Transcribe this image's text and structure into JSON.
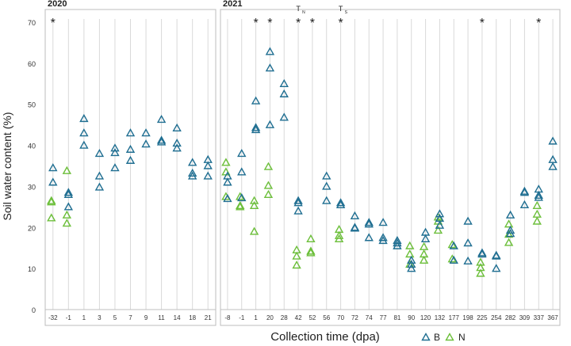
{
  "chart_data": {
    "type": "scatter",
    "ylabel": "Soil water content (%)",
    "xlabel": "Collection time (dpa)",
    "ylim": [
      0,
      70
    ],
    "yticks": [
      0,
      10,
      20,
      30,
      40,
      50,
      60,
      70
    ],
    "marker": "open-triangle",
    "legend_position": "bottom-right",
    "series": [
      {
        "name": "B",
        "color": "#1f6e91"
      },
      {
        "name": "N",
        "color": "#6cbf3a"
      }
    ],
    "panels": [
      {
        "year": "2020",
        "categories": [
          "-32",
          "-1",
          "1",
          "3",
          "5",
          "7",
          "9",
          "11",
          "14",
          "18",
          "21"
        ],
        "stars": [
          "-32"
        ],
        "points": [
          {
            "x": "-32",
            "B": [
              34.5,
              31
            ],
            "N": [
              26.5,
              26.2,
              22.3
            ]
          },
          {
            "x": "-1",
            "B": [
              28.5,
              28,
              25
            ],
            "N": [
              33.8,
              23,
              21
            ]
          },
          {
            "x": "1",
            "B": [
              46.5,
              43,
              40
            ]
          },
          {
            "x": "3",
            "B": [
              38,
              32.5,
              29.8
            ]
          },
          {
            "x": "5",
            "B": [
              39.3,
              38.2,
              34.5
            ]
          },
          {
            "x": "7",
            "B": [
              43,
              39,
              36.3
            ]
          },
          {
            "x": "9",
            "B": [
              43,
              40.3
            ]
          },
          {
            "x": "11",
            "B": [
              46.3,
              41.2,
              40.8
            ]
          },
          {
            "x": "14",
            "B": [
              44.2,
              40.5,
              39.3
            ]
          },
          {
            "x": "18",
            "B": [
              35.8,
              33.2,
              32.5
            ]
          },
          {
            "x": "21",
            "B": [
              36.5,
              35,
              32.5
            ]
          }
        ]
      },
      {
        "year": "2021",
        "categories": [
          "-8",
          "-1",
          "1",
          "20",
          "28",
          "42",
          "52",
          "56",
          "70",
          "72",
          "74",
          "77",
          "81",
          "90",
          "120",
          "132",
          "177",
          "198",
          "225",
          "254",
          "282",
          "309",
          "337",
          "367"
        ],
        "stars": [
          "1",
          "20",
          "42",
          "52",
          "70",
          "225",
          "337"
        ],
        "annotations": [
          {
            "text": "T",
            "sub": "N",
            "x": "42"
          },
          {
            "text": "T",
            "sub": "S",
            "x": "70"
          }
        ],
        "points": [
          {
            "x": "-8",
            "B": [
              32.5,
              31,
              27
            ],
            "N": [
              35.8,
              33.5,
              27.5
            ]
          },
          {
            "x": "-1",
            "B": [
              38,
              33.5,
              27.2
            ],
            "N": [
              27.5,
              25.3,
              25
            ]
          },
          {
            "x": "1",
            "B": [
              50.8,
              44.3,
              43.8
            ],
            "N": [
              26.5,
              25.3,
              19
            ]
          },
          {
            "x": "20",
            "B": [
              62.8,
              58.8,
              45
            ],
            "N": [
              34.8,
              30.2,
              28
            ]
          },
          {
            "x": "28",
            "B": [
              55,
              52.5,
              46.8
            ]
          },
          {
            "x": "42",
            "B": [
              26.5,
              26,
              24
            ],
            "N": [
              14.5,
              13,
              10.8
            ]
          },
          {
            "x": "52",
            "N": [
              17.2,
              14.2,
              13.8
            ]
          },
          {
            "x": "56",
            "B": [
              32.5,
              30,
              26.5
            ]
          },
          {
            "x": "70",
            "B": [
              26,
              25.5
            ],
            "N": [
              19.5,
              18,
              17.2
            ]
          },
          {
            "x": "72",
            "B": [
              22.8,
              20,
              19.8
            ]
          },
          {
            "x": "74",
            "B": [
              21.2,
              20.8,
              17.5
            ]
          },
          {
            "x": "77",
            "B": [
              21.2,
              17.5,
              16.8
            ]
          },
          {
            "x": "81",
            "B": [
              16.8,
              16.2,
              15.5
            ]
          },
          {
            "x": "90",
            "B": [
              12,
              11,
              10
            ],
            "N": [
              15.5,
              13.5,
              11
            ]
          },
          {
            "x": "120",
            "B": [
              18.8,
              17.2
            ],
            "N": [
              15.3,
              13.5,
              12
            ]
          },
          {
            "x": "132",
            "B": [
              23.3,
              22.2,
              20.5
            ],
            "N": [
              22.5,
              21.5,
              19.3
            ]
          },
          {
            "x": "177",
            "B": [
              15.5,
              12
            ],
            "N": [
              15.8,
              12.3
            ]
          },
          {
            "x": "198",
            "B": [
              21.5,
              16.2,
              11.8
            ]
          },
          {
            "x": "225",
            "B": [
              13.8,
              13.5
            ],
            "N": [
              11.5,
              10.2,
              8.8
            ]
          },
          {
            "x": "254",
            "B": [
              13.2,
              13,
              10
            ]
          },
          {
            "x": "282",
            "B": [
              23,
              19.3,
              18.5
            ],
            "N": [
              20.8,
              18.3,
              16.3
            ]
          },
          {
            "x": "309",
            "B": [
              28.8,
              28.5,
              25.5
            ]
          },
          {
            "x": "337",
            "B": [
              29.3,
              27.8,
              27.3
            ],
            "N": [
              25.3,
              23.2,
              21.5
            ]
          },
          {
            "x": "367",
            "B": [
              41,
              36.5,
              34.8
            ]
          }
        ]
      }
    ]
  }
}
